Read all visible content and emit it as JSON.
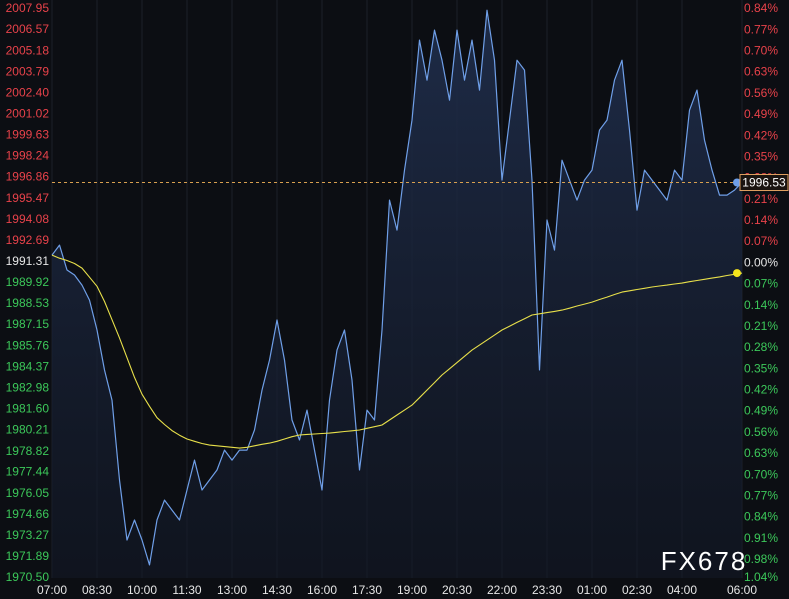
{
  "chart_data": {
    "type": "line",
    "categories": [
      "07:00",
      null,
      null,
      null,
      null,
      null,
      "08:30",
      null,
      null,
      null,
      null,
      null,
      "10:00",
      null,
      null,
      null,
      null,
      null,
      "11:30",
      null,
      null,
      null,
      null,
      null,
      "13:00",
      null,
      null,
      null,
      null,
      null,
      "14:30",
      null,
      null,
      null,
      null,
      null,
      "16:00",
      null,
      null,
      null,
      null,
      null,
      "17:30",
      null,
      null,
      null,
      null,
      null,
      "19:00",
      null,
      null,
      null,
      null,
      null,
      "20:30",
      null,
      null,
      null,
      null,
      null,
      "22:00",
      null,
      null,
      null,
      null,
      null,
      "23:30",
      null,
      null,
      null,
      null,
      null,
      "01:00",
      null,
      null,
      null,
      null,
      null,
      "02:30",
      null,
      null,
      null,
      null,
      null,
      "04:00",
      null,
      null,
      null,
      null,
      null,
      null,
      null,
      "06:00"
    ],
    "series": [
      {
        "color": "#6f9fe8",
        "area": true,
        "values": [
          1991.75,
          1992.41,
          1990.77,
          1990.44,
          1989.78,
          1988.79,
          1986.82,
          1984.19,
          1982.21,
          1976.95,
          1973.0,
          1974.32,
          1973.0,
          1971.36,
          1974.32,
          1975.63,
          1974.97,
          1974.32,
          1976.29,
          1978.26,
          1976.29,
          1976.95,
          1977.61,
          1978.92,
          1978.26,
          1978.92,
          1978.92,
          1980.24,
          1982.87,
          1984.84,
          1987.48,
          1984.84,
          1980.9,
          1979.58,
          1981.55,
          1978.92,
          1976.29,
          1982.21,
          1985.5,
          1986.82,
          1983.53,
          1977.61,
          1981.55,
          1980.9,
          1986.82,
          1995.37,
          1993.4,
          1997.35,
          2000.64,
          2005.9,
          2003.27,
          2006.56,
          2004.58,
          2001.95,
          2006.56,
          2003.27,
          2005.9,
          2002.61,
          2007.87,
          2004.58,
          1996.69,
          2000.64,
          2004.58,
          2003.93,
          1996.69,
          1984.19,
          1994.06,
          1992.08,
          1998.0,
          1996.69,
          1995.37,
          1996.69,
          1997.35,
          1999.98,
          2000.64,
          2003.27,
          2004.58,
          1999.98,
          1994.71,
          1997.35,
          1996.69,
          1996.03,
          1995.37,
          1997.35,
          1996.69,
          2001.29,
          2002.61,
          1999.32,
          1997.35,
          1995.7,
          1995.7,
          1996.03,
          1996.53
        ]
      },
      {
        "color": "#e8e04a",
        "area": false,
        "values": [
          1991.75,
          1991.55,
          1991.4,
          1991.2,
          1990.9,
          1990.3,
          1989.7,
          1988.7,
          1987.5,
          1986.3,
          1985.0,
          1983.7,
          1982.6,
          1981.8,
          1981.05,
          1980.6,
          1980.2,
          1979.9,
          1979.65,
          1979.5,
          1979.35,
          1979.25,
          1979.2,
          1979.15,
          1979.1,
          1979.05,
          1979.1,
          1979.2,
          1979.3,
          1979.38,
          1979.5,
          1979.65,
          1979.8,
          1979.91,
          1979.95,
          1979.98,
          1980.01,
          1980.04,
          1980.09,
          1980.14,
          1980.19,
          1980.24,
          1980.35,
          1980.46,
          1980.57,
          1980.9,
          1981.23,
          1981.55,
          1981.88,
          1982.37,
          1982.87,
          1983.36,
          1983.86,
          1984.27,
          1984.68,
          1985.09,
          1985.5,
          1985.83,
          1986.16,
          1986.49,
          1986.82,
          1987.07,
          1987.32,
          1987.56,
          1987.81,
          1987.89,
          1987.97,
          1988.05,
          1988.13,
          1988.26,
          1988.4,
          1988.53,
          1988.66,
          1988.83,
          1988.99,
          1989.16,
          1989.32,
          1989.4,
          1989.49,
          1989.57,
          1989.65,
          1989.72,
          1989.78,
          1989.85,
          1989.91,
          1990.0,
          1990.08,
          1990.16,
          1990.24,
          1990.32,
          1990.41,
          1990.49,
          1990.57
        ]
      }
    ],
    "ylim": [
      1970.5,
      2007.95
    ],
    "yticks": [
      2007.95,
      2006.57,
      2005.18,
      2003.79,
      {
        "value": 2002.4,
        "label": "2002.40"
      },
      2001.02,
      1999.63,
      1998.24,
      1996.86,
      1995.47,
      1994.08,
      1992.69,
      1991.31,
      1989.92,
      1988.53,
      1987.15,
      1985.76,
      1984.37,
      1982.98,
      {
        "value": 1981.6,
        "label": "1981.60"
      },
      1980.21,
      1978.82,
      1977.44,
      1976.05,
      1974.66,
      1973.27,
      1971.89,
      {
        "value": 1970.5,
        "label": "1970.50"
      }
    ],
    "y2lim": [
      -1.04,
      0.84
    ],
    "y2ticks": [
      {
        "value": 0.84,
        "label": "0.84%"
      },
      {
        "value": 0.77,
        "label": "0.77%"
      },
      {
        "value": 0.7,
        "label": "0.70%"
      },
      {
        "value": 0.63,
        "label": "0.63%"
      },
      {
        "value": 0.56,
        "label": "0.56%"
      },
      {
        "value": 0.49,
        "label": "0.49%"
      },
      {
        "value": 0.42,
        "label": "0.42%"
      },
      {
        "value": 0.35,
        "label": "0.35%"
      },
      {
        "value": 0.28,
        "label": "0.28%"
      },
      {
        "value": 0.21,
        "label": "0.21%"
      },
      {
        "value": 0.14,
        "label": "0.14%"
      },
      {
        "value": 0.07,
        "label": "0.07%"
      },
      {
        "value": 0,
        "label": "0.00%"
      },
      {
        "value": -0.07,
        "label": "0.07%"
      },
      {
        "value": -0.14,
        "label": "0.14%"
      },
      {
        "value": -0.21,
        "label": "0.21%"
      },
      {
        "value": -0.28,
        "label": "0.28%"
      },
      {
        "value": -0.35,
        "label": "0.35%"
      },
      {
        "value": -0.42,
        "label": "0.42%"
      },
      {
        "value": -0.49,
        "label": "0.49%"
      },
      {
        "value": -0.56,
        "label": "0.56%"
      },
      {
        "value": -0.63,
        "label": "0.63%"
      },
      {
        "value": -0.7,
        "label": "0.70%"
      },
      {
        "value": -0.77,
        "label": "0.77%"
      },
      {
        "value": -0.84,
        "label": "0.84%"
      },
      {
        "value": -0.91,
        "label": "0.91%"
      },
      {
        "value": -0.98,
        "label": "0.98%"
      },
      {
        "value": -1.04,
        "label": "1.04%"
      }
    ],
    "up_color": "#e8424a",
    "down_color": "#3cc85a",
    "flat_color": "#e6e6e6",
    "grid": true,
    "watermark": "FX678"
  }
}
